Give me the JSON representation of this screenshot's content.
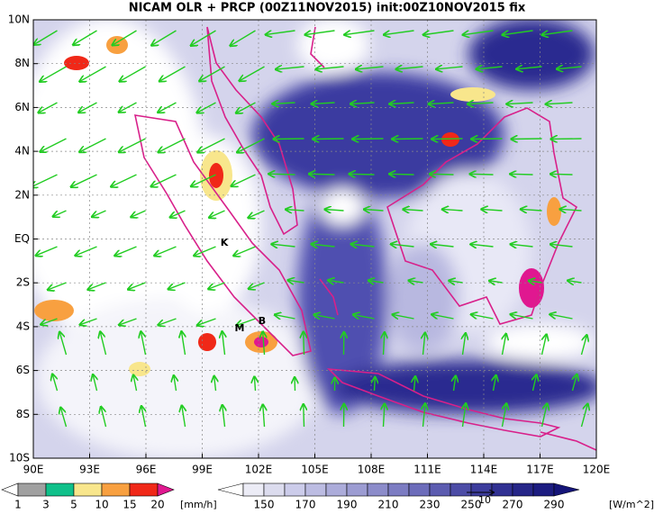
{
  "title": "NICAM OLR + PRCP (00Z11NOV2015) init:00Z10NOV2015 fix",
  "map": {
    "y_labels": [
      "10N",
      "8N",
      "6N",
      "4N",
      "2N",
      "EQ",
      "2S",
      "4S",
      "6S",
      "8S",
      "10S"
    ],
    "x_labels": [
      "90E",
      "93E",
      "96E",
      "99E",
      "102E",
      "105E",
      "108E",
      "111E",
      "114E",
      "117E",
      "120E"
    ],
    "places": [
      {
        "label": "K"
      },
      {
        "label": "M"
      },
      {
        "label": "B"
      }
    ]
  },
  "precip_legend": {
    "labels": [
      "1",
      "3",
      "5",
      "10",
      "15",
      "20"
    ],
    "unit": "[mm/h]",
    "colors": [
      "#ffffff",
      "#a0a0a0",
      "#10c08a",
      "#f8e68c",
      "#f8a040",
      "#f02818",
      "#e01890"
    ]
  },
  "olr_legend": {
    "labels": [
      "150",
      "170",
      "190",
      "210",
      "230",
      "250",
      "270",
      "290"
    ],
    "unit": "[W/m^2]",
    "colors": [
      "#ffffff",
      "#ececf6",
      "#dcdcee",
      "#ccccea",
      "#bcbce2",
      "#acacda",
      "#9c9cd2",
      "#8c8cca",
      "#7c7cc2",
      "#6c6cba",
      "#5c5cb0",
      "#4c4ca6",
      "#3c3c9c",
      "#303092",
      "#262688",
      "#1c1c80",
      "#141478"
    ]
  },
  "vector_reference": "10"
}
